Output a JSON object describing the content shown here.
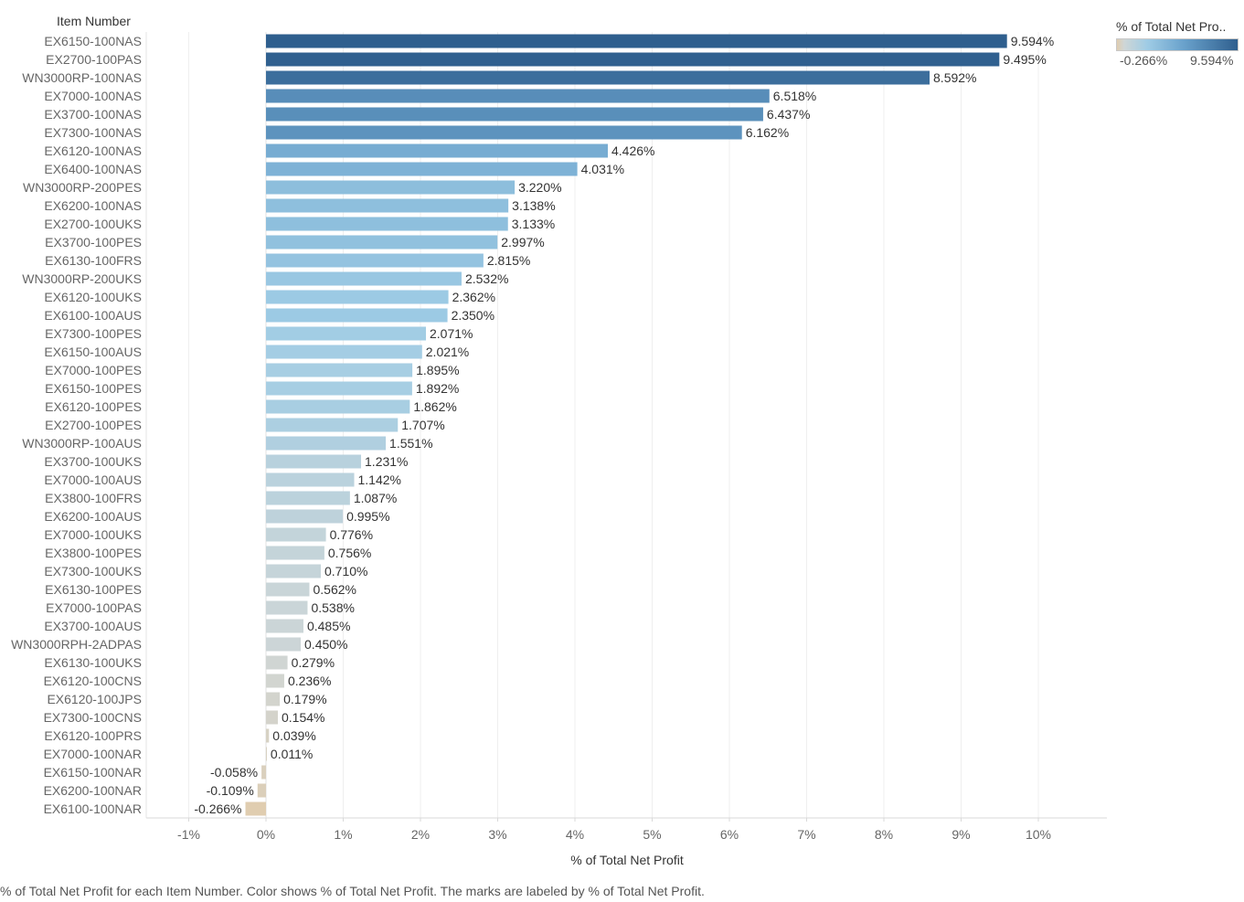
{
  "row_header": "Item Number",
  "legend": {
    "title": "% of Total Net Pro..",
    "min_label": "-0.266%",
    "max_label": "9.594%",
    "gradient_colors": [
      "#e0cdb0",
      "#cfd6d6",
      "#9fcce5",
      "#6aa2cc",
      "#2f5f8e"
    ]
  },
  "caption": "% of Total Net Profit for each Item Number.  Color shows % of Total Net Profit.  The marks are labeled by % of Total Net Profit.",
  "chart_data": {
    "type": "bar",
    "orientation": "horizontal",
    "xlabel": "% of Total Net Profit",
    "ylabel": "Item Number",
    "xlim": [
      -1,
      11
    ],
    "x_ticks": [
      -1,
      0,
      1,
      2,
      3,
      4,
      5,
      6,
      7,
      8,
      9,
      10
    ],
    "x_tick_labels": [
      "-1%",
      "0%",
      "1%",
      "2%",
      "3%",
      "4%",
      "5%",
      "6%",
      "7%",
      "8%",
      "9%",
      "10%"
    ],
    "grid": true,
    "legend_position": "top-right",
    "categories": [
      "EX6150-100NAS",
      "EX2700-100PAS",
      "WN3000RP-100NAS",
      "EX7000-100NAS",
      "EX3700-100NAS",
      "EX7300-100NAS",
      "EX6120-100NAS",
      "EX6400-100NAS",
      "WN3000RP-200PES",
      "EX6200-100NAS",
      "EX2700-100UKS",
      "EX3700-100PES",
      "EX6130-100FRS",
      "WN3000RP-200UKS",
      "EX6120-100UKS",
      "EX6100-100AUS",
      "EX7300-100PES",
      "EX6150-100AUS",
      "EX7000-100PES",
      "EX6150-100PES",
      "EX6120-100PES",
      "EX2700-100PES",
      "WN3000RP-100AUS",
      "EX3700-100UKS",
      "EX7000-100AUS",
      "EX3800-100FRS",
      "EX6200-100AUS",
      "EX7000-100UKS",
      "EX3800-100PES",
      "EX7300-100UKS",
      "EX6130-100PES",
      "EX7000-100PAS",
      "EX3700-100AUS",
      "WN3000RPH-2ADPAS",
      "EX6130-100UKS",
      "EX6120-100CNS",
      "EX6120-100JPS",
      "EX7300-100CNS",
      "EX6120-100PRS",
      "EX7000-100NAR",
      "EX6150-100NAR",
      "EX6200-100NAR",
      "EX6100-100NAR"
    ],
    "values": [
      9.594,
      9.495,
      8.592,
      6.518,
      6.437,
      6.162,
      4.426,
      4.031,
      3.22,
      3.138,
      3.133,
      2.997,
      2.815,
      2.532,
      2.362,
      2.35,
      2.071,
      2.021,
      1.895,
      1.892,
      1.862,
      1.707,
      1.551,
      1.231,
      1.142,
      1.087,
      0.995,
      0.776,
      0.756,
      0.71,
      0.562,
      0.538,
      0.485,
      0.45,
      0.279,
      0.236,
      0.179,
      0.154,
      0.039,
      0.011,
      -0.058,
      -0.109,
      -0.266
    ],
    "data_labels": [
      "9.594%",
      "9.495%",
      "8.592%",
      "6.518%",
      "6.437%",
      "6.162%",
      "4.426%",
      "4.031%",
      "3.220%",
      "3.138%",
      "3.133%",
      "2.997%",
      "2.815%",
      "2.532%",
      "2.362%",
      "2.350%",
      "2.071%",
      "2.021%",
      "1.895%",
      "1.892%",
      "1.862%",
      "1.707%",
      "1.551%",
      "1.231%",
      "1.142%",
      "1.087%",
      "0.995%",
      "0.776%",
      "0.756%",
      "0.710%",
      "0.562%",
      "0.538%",
      "0.485%",
      "0.450%",
      "0.279%",
      "0.236%",
      "0.179%",
      "0.154%",
      "0.039%",
      "0.011%",
      "-0.058%",
      "-0.109%",
      "-0.266%"
    ]
  }
}
